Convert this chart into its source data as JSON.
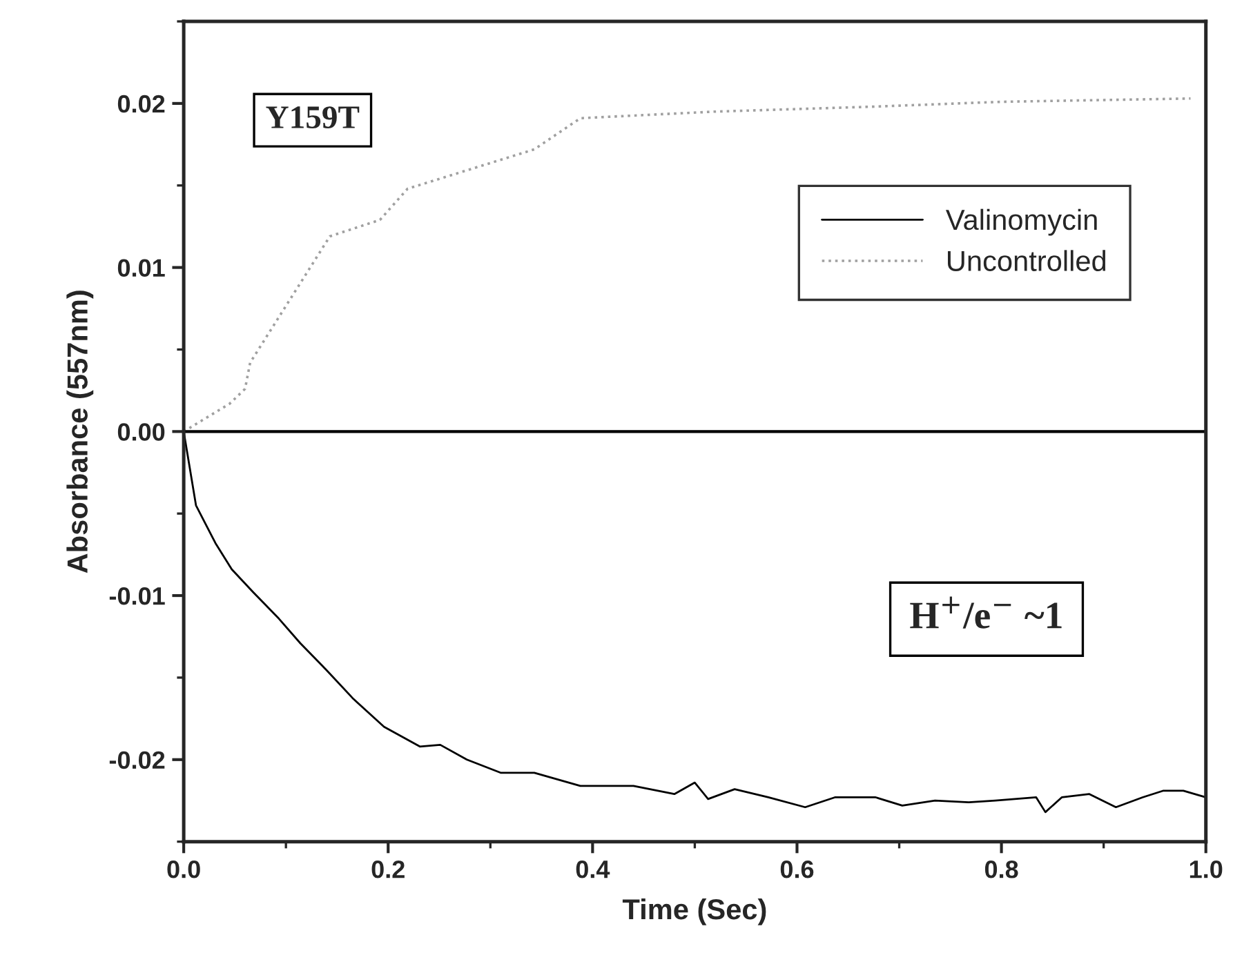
{
  "chart_data": {
    "type": "line",
    "xlabel": "Time (Sec)",
    "ylabel": "Absorbance (557nm)",
    "xlim": [
      0,
      1.0
    ],
    "xticks": [
      {
        "value": 0,
        "label": "0.0"
      },
      0.2,
      0.4,
      0.6,
      0.8,
      {
        "value": 1.0,
        "label": "1.0"
      }
    ],
    "ylim": [
      -0.025,
      0.025
    ],
    "yticks": [
      -0.02,
      -0.01,
      {
        "value": 0,
        "label": "0.00"
      },
      0.01,
      0.02
    ],
    "grid": false,
    "legend": "right",
    "marker": "none",
    "ref_lines": [
      {
        "axis": "y",
        "value": 0,
        "color": "#000000",
        "line_style": "solid"
      }
    ],
    "annotations": [
      {
        "text": "Y159T"
      },
      {
        "text": "H$^{+}$/e$^{−}$ ~1"
      }
    ],
    "series": [
      {
        "name": "Valinomycin",
        "color": "#000000",
        "line_style": "solid",
        "x": [
          0,
          0.012,
          0.031,
          0.047,
          0.068,
          0.093,
          0.114,
          0.139,
          0.166,
          0.196,
          0.231,
          0.251,
          0.277,
          0.31,
          0.343,
          0.388,
          0.44,
          0.48,
          0.5,
          0.513,
          0.539,
          0.572,
          0.608,
          0.637,
          0.677,
          0.703,
          0.735,
          0.768,
          0.794,
          0.834,
          0.843,
          0.859,
          0.886,
          0.912,
          0.938,
          0.958,
          0.978,
          1.0
        ],
        "values": [
          0,
          -0.0045,
          -0.0068,
          -0.0084,
          -0.0098,
          -0.0114,
          -0.0129,
          -0.0145,
          -0.0163,
          -0.018,
          -0.0192,
          -0.0191,
          -0.02,
          -0.0208,
          -0.0208,
          -0.0216,
          -0.0216,
          -0.0221,
          -0.0214,
          -0.0224,
          -0.0218,
          -0.0223,
          -0.0229,
          -0.0223,
          -0.0223,
          -0.0228,
          -0.0225,
          -0.0226,
          -0.0225,
          -0.0223,
          -0.0232,
          -0.0223,
          -0.0221,
          -0.0229,
          -0.0223,
          -0.0219,
          -0.0219,
          -0.0223
        ]
      },
      {
        "name": "Uncontrolled",
        "color": "#a0a0a0",
        "line_style": "dotted",
        "x": [
          0,
          0.045,
          0.06,
          0.065,
          0.143,
          0.192,
          0.219,
          0.343,
          0.388,
          0.519,
          0.673,
          0.8,
          0.985
        ],
        "values": [
          0,
          0.0017,
          0.0026,
          0.0042,
          0.0119,
          0.0129,
          0.0148,
          0.0172,
          0.0191,
          0.0195,
          0.0198,
          0.0201,
          0.0203
        ]
      }
    ]
  }
}
